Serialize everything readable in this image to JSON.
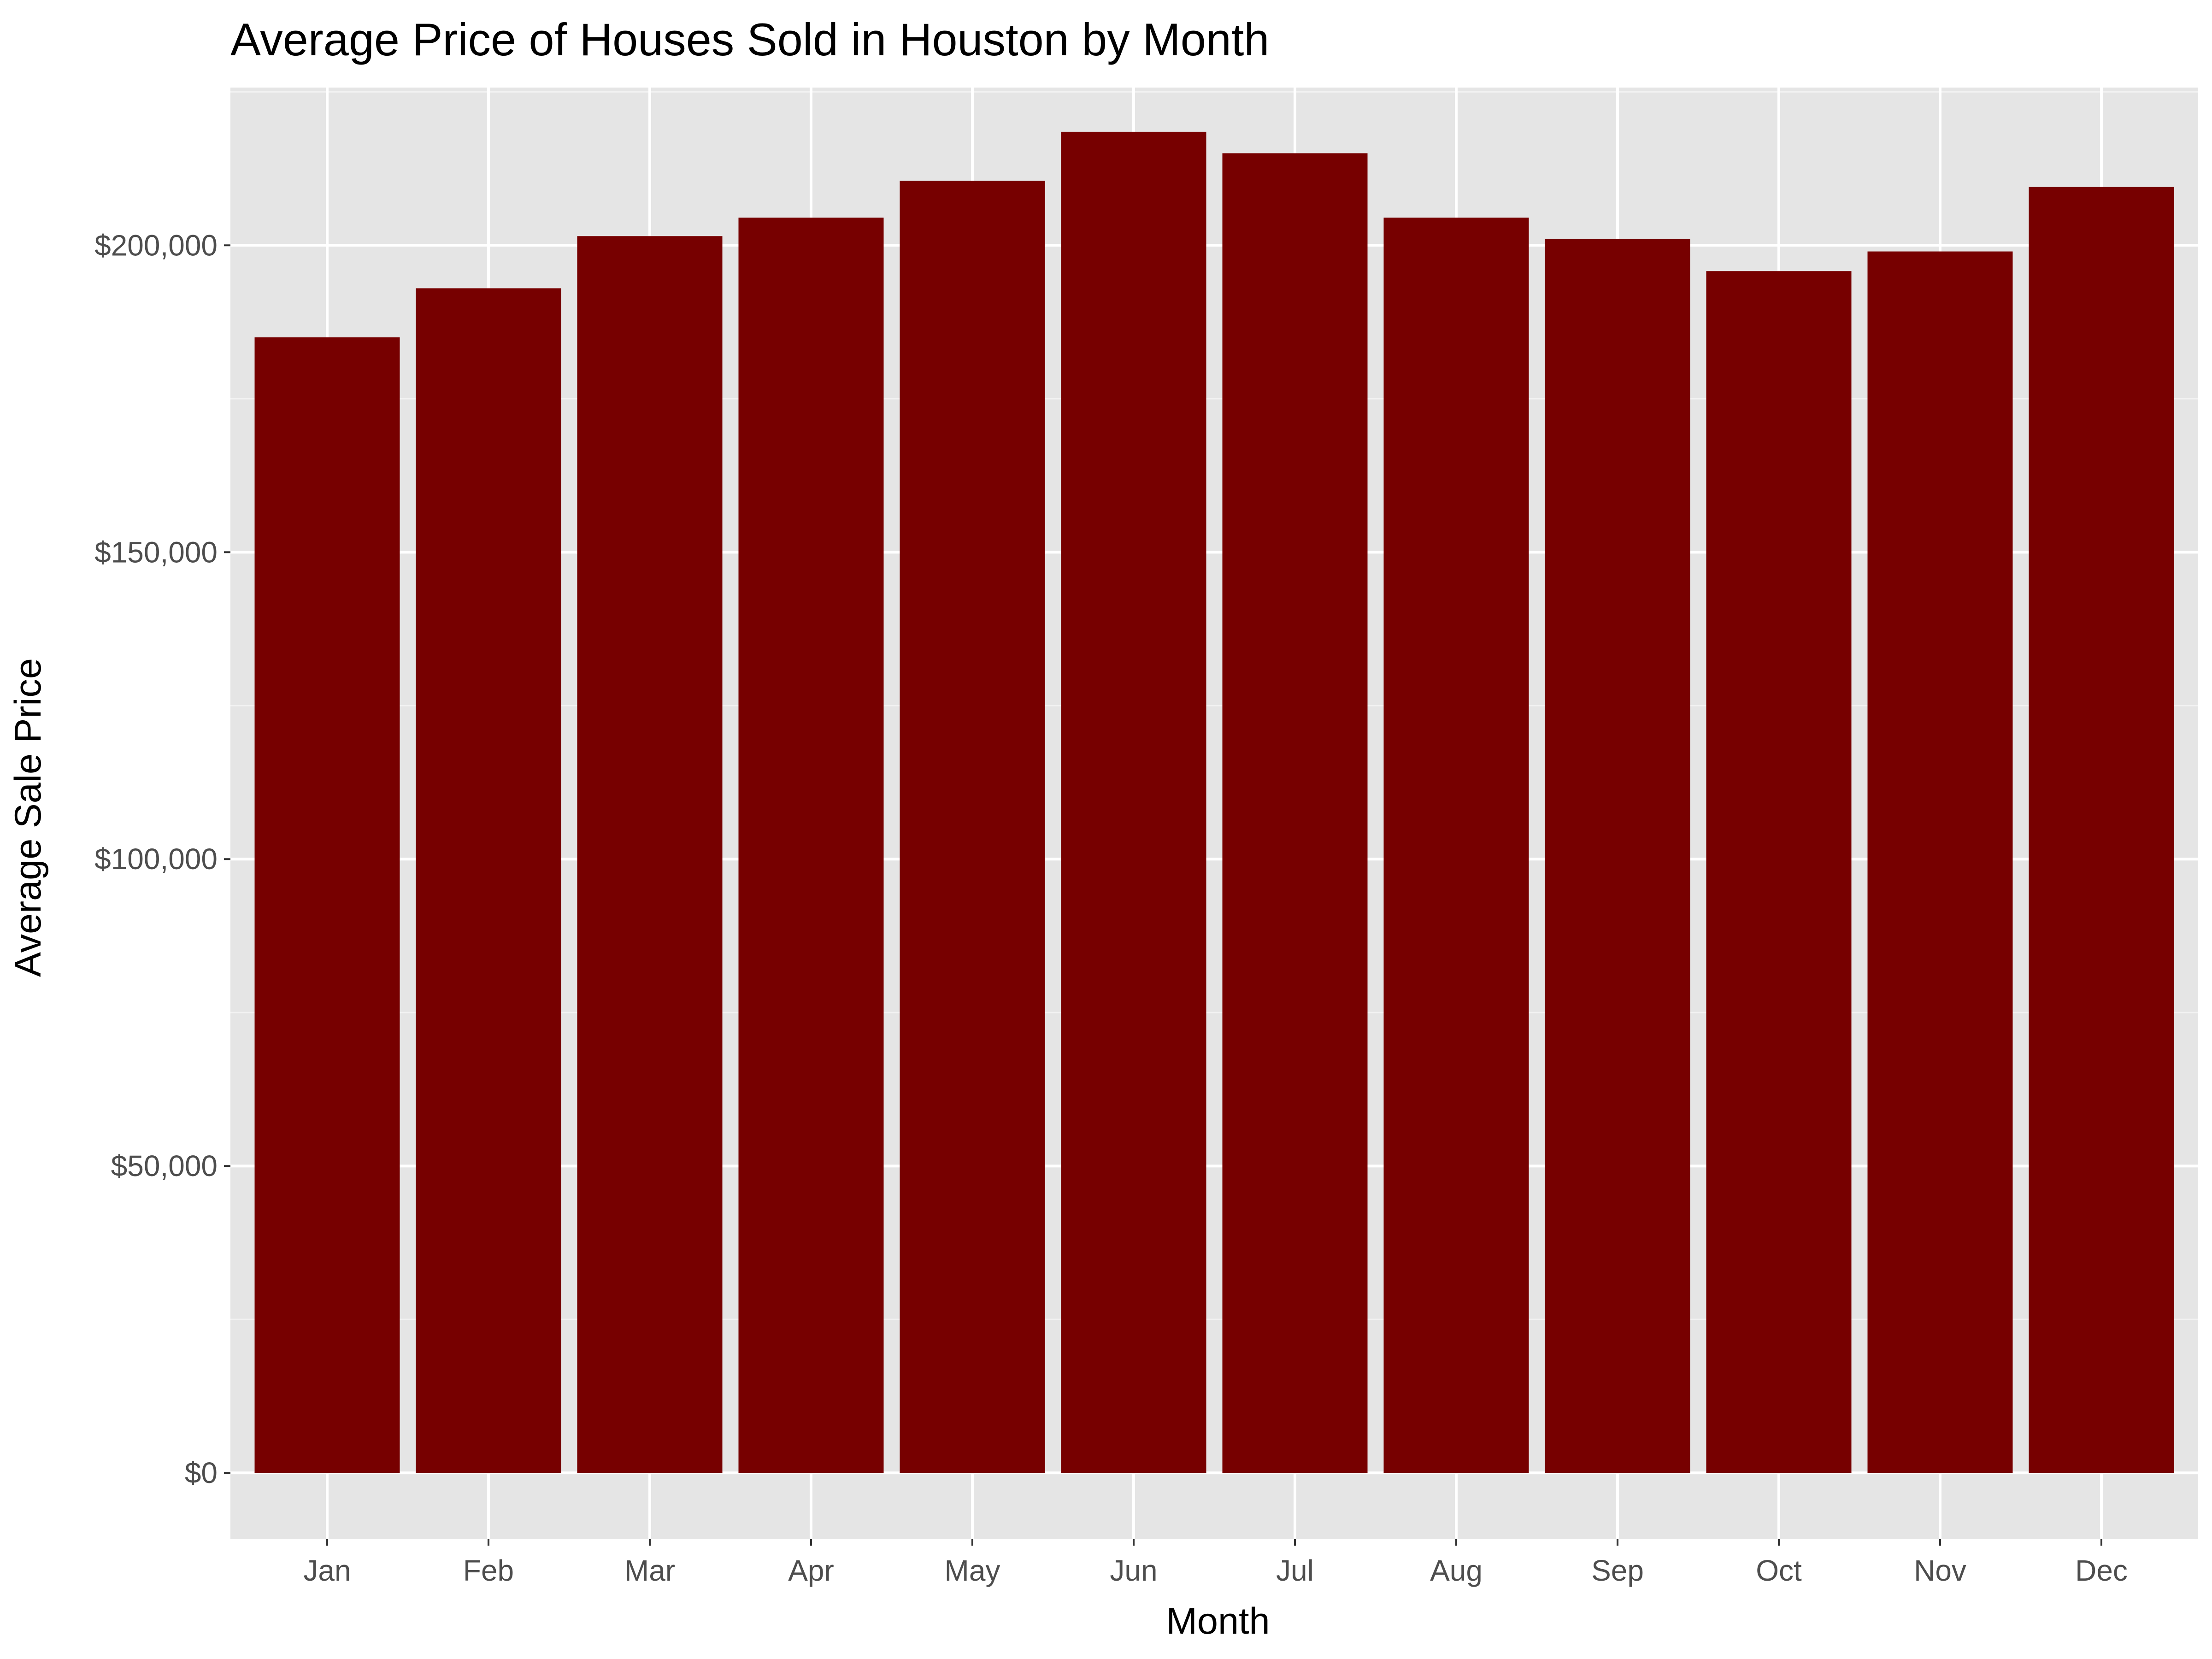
{
  "chart_data": {
    "type": "bar",
    "title": "Average Price of Houses Sold in Houston by Month",
    "xlabel": "Month",
    "ylabel": "Average Sale Price",
    "categories": [
      "Jan",
      "Feb",
      "Mar",
      "Apr",
      "May",
      "Jun",
      "Jul",
      "Aug",
      "Sep",
      "Oct",
      "Nov",
      "Dec"
    ],
    "values": [
      185000,
      193000,
      201500,
      204500,
      210500,
      218500,
      215000,
      204500,
      201000,
      195800,
      199000,
      209500
    ],
    "ylim": [
      -10800,
      225700
    ],
    "yticks": [
      0,
      50000,
      100000,
      150000,
      200000
    ],
    "ytick_labels": [
      "$0",
      "$50,000",
      "$100,000",
      "$150,000",
      "$200,000"
    ],
    "grid": true,
    "colors": {
      "bar": "#770000",
      "panel_background": "#e5e5e5",
      "grid_major": "#ffffff",
      "grid_minor": "#f2f2f2",
      "tick_text": "#4d4d4d"
    }
  }
}
